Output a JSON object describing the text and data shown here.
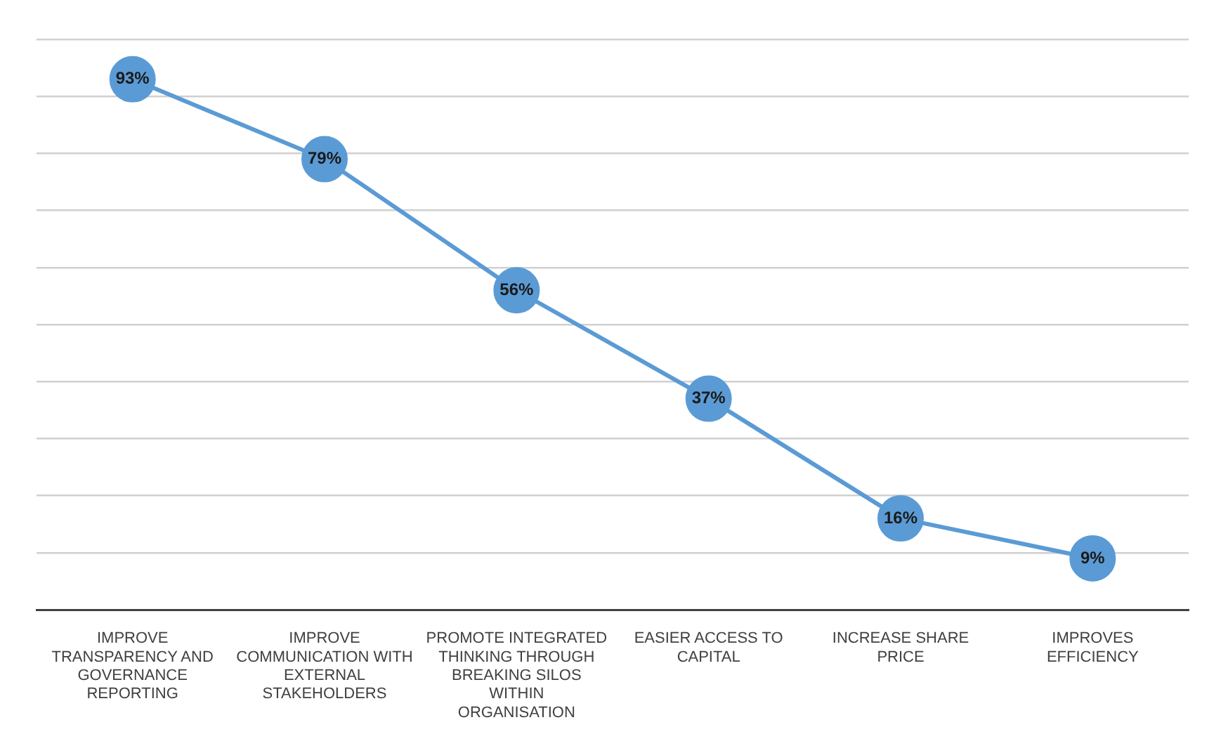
{
  "chart_data": {
    "type": "line",
    "categories": [
      "IMPROVE TRANSPARENCY AND GOVERNANCE REPORTING",
      "IMPROVE COMMUNICATION WITH EXTERNAL STAKEHOLDERS",
      "PROMOTE INTEGRATED THINKING THROUGH BREAKING SILOS WITHIN ORGANISATION",
      "EASIER ACCESS TO CAPITAL",
      "INCREASE SHARE PRICE",
      "IMPROVES EFFICIENCY"
    ],
    "series": [
      {
        "color": "#5b9bd5",
        "values": [
          93,
          79,
          56,
          37,
          16,
          9
        ],
        "value_labels": [
          "93%",
          "79%",
          "56%",
          "37%",
          "16%",
          "9%"
        ]
      }
    ],
    "ylim": [
      0,
      100
    ],
    "yticks": [
      {
        "value": 0,
        "label": null
      },
      {
        "value": 10,
        "label": null
      },
      {
        "value": 20,
        "label": null
      },
      {
        "value": 30,
        "label": null
      },
      {
        "value": 40,
        "label": null
      },
      {
        "value": 50,
        "label": null
      },
      {
        "value": 60,
        "label": null
      },
      {
        "value": 70,
        "label": null
      },
      {
        "value": 80,
        "label": null
      },
      {
        "value": 90,
        "label": null
      },
      {
        "value": 100,
        "label": null
      }
    ],
    "grid": "y",
    "tick_labels": "x",
    "marker": "circle",
    "line_style": "solid",
    "legend": false
  }
}
